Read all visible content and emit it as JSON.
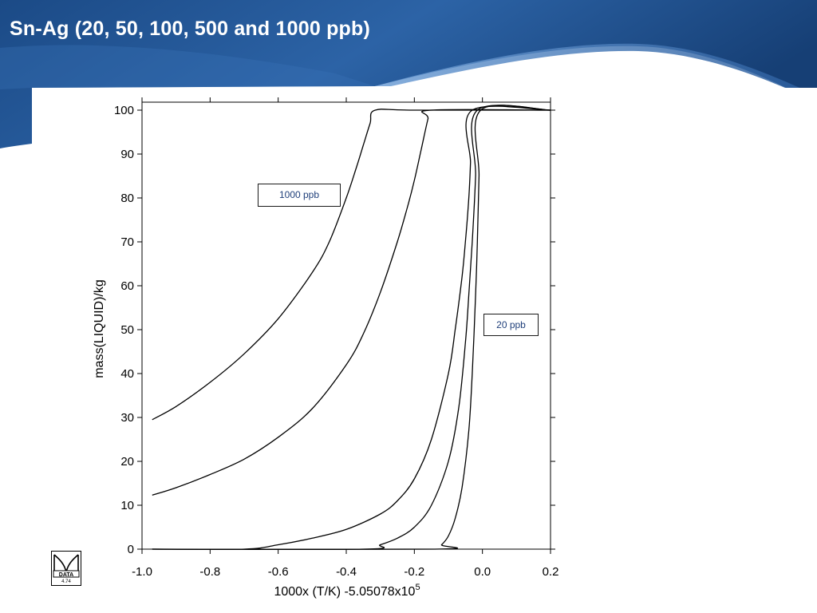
{
  "slide": {
    "title": "Sn-Ag (20, 50, 100, 500 and 1000 ppb)"
  },
  "logo": {
    "text": "DATA",
    "version": "4.74"
  },
  "annotations": {
    "top_label": "1000 ppb",
    "bottom_label": "20 ppb"
  },
  "colors": {
    "banner_dark": "#1b4a86",
    "banner_light": "#3a73b8",
    "annotation_text": "#1f3f7a",
    "curves": "#000000"
  },
  "chart_data": {
    "type": "line",
    "xlabel_main": "1000x (T/K) -5.05078x10",
    "xlabel_superscript": "5",
    "ylabel": "mass(LIQUID)/kg",
    "xlim": [
      -1.0,
      0.2
    ],
    "ylim": [
      0,
      100
    ],
    "xticks": [
      "-1.0",
      "-0.8",
      "-0.6",
      "-0.4",
      "-0.2",
      "0.0",
      "0.2"
    ],
    "yticks": [
      "0",
      "10",
      "20",
      "30",
      "40",
      "50",
      "60",
      "70",
      "80",
      "90",
      "100"
    ],
    "grid": false,
    "series": [
      {
        "x": [
          -0.97,
          -0.9,
          -0.8,
          -0.7,
          -0.6,
          -0.5,
          -0.45,
          -0.4,
          -0.37,
          -0.35,
          -0.33,
          -0.315,
          -0.2,
          0.2
        ],
        "y": [
          29.5,
          32.5,
          38,
          44.5,
          52.5,
          63,
          70,
          80,
          87,
          92,
          97,
          100,
          100,
          100
        ]
      },
      {
        "x": [
          -0.97,
          -0.9,
          -0.8,
          -0.7,
          -0.6,
          -0.5,
          -0.4,
          -0.35,
          -0.3,
          -0.25,
          -0.22,
          -0.2,
          -0.18,
          -0.16,
          -0.15,
          0.2
        ],
        "y": [
          12.3,
          14,
          17,
          20.5,
          25.5,
          32,
          42,
          49,
          58.5,
          70,
          78,
          84,
          91,
          98,
          100,
          100
        ]
      },
      {
        "x": [
          -0.97,
          -0.7,
          -0.6,
          -0.5,
          -0.4,
          -0.3,
          -0.25,
          -0.2,
          -0.15,
          -0.1,
          -0.08,
          -0.06,
          -0.05,
          -0.04,
          -0.035,
          -0.03,
          0.2
        ],
        "y": [
          0,
          0,
          1,
          2.5,
          4.5,
          8,
          11,
          16,
          25,
          40,
          50,
          62,
          70,
          80,
          88,
          100,
          100
        ]
      },
      {
        "x": [
          -0.97,
          -0.35,
          -0.3,
          -0.25,
          -0.2,
          -0.15,
          -0.1,
          -0.07,
          -0.05,
          -0.04,
          -0.03,
          -0.02,
          -0.015,
          0.2
        ],
        "y": [
          0,
          0,
          1,
          2.5,
          5,
          10,
          20,
          32,
          47,
          58,
          70,
          85,
          100,
          100
        ]
      },
      {
        "x": [
          -0.97,
          -0.14,
          -0.12,
          -0.1,
          -0.08,
          -0.06,
          -0.04,
          -0.03,
          -0.02,
          -0.015,
          -0.01,
          -0.005,
          0.2
        ],
        "y": [
          0,
          0,
          1,
          3,
          7,
          14,
          27,
          40,
          58,
          70,
          85,
          100,
          100
        ]
      }
    ]
  }
}
